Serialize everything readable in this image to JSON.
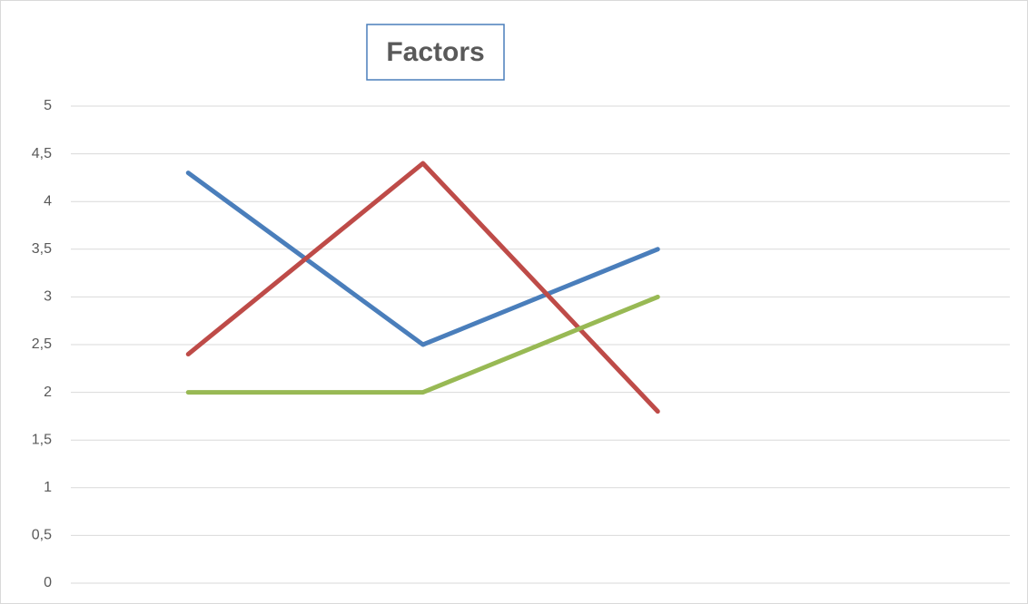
{
  "chart_data": {
    "type": "line",
    "title": "Factors",
    "categories": [
      null,
      null,
      null,
      null
    ],
    "series": [
      {
        "color": "#4a7ebb",
        "values": [
          4.3,
          2.5,
          3.5,
          null
        ]
      },
      {
        "color": "#be4b48",
        "values": [
          2.4,
          4.4,
          1.8,
          null
        ]
      },
      {
        "color": "#98b954",
        "values": [
          2,
          2,
          3,
          null
        ]
      }
    ],
    "ylim": [
      0,
      5
    ],
    "yticks": [
      0,
      {
        "value": 0.5,
        "label": "0,5"
      },
      1,
      {
        "value": 1.5,
        "label": "1,5"
      },
      2,
      {
        "value": 2.5,
        "label": "2,5"
      },
      3,
      {
        "value": 3.5,
        "label": "3,5"
      },
      4,
      {
        "value": 4.5,
        "label": "4,5"
      },
      5
    ],
    "grid": true
  }
}
